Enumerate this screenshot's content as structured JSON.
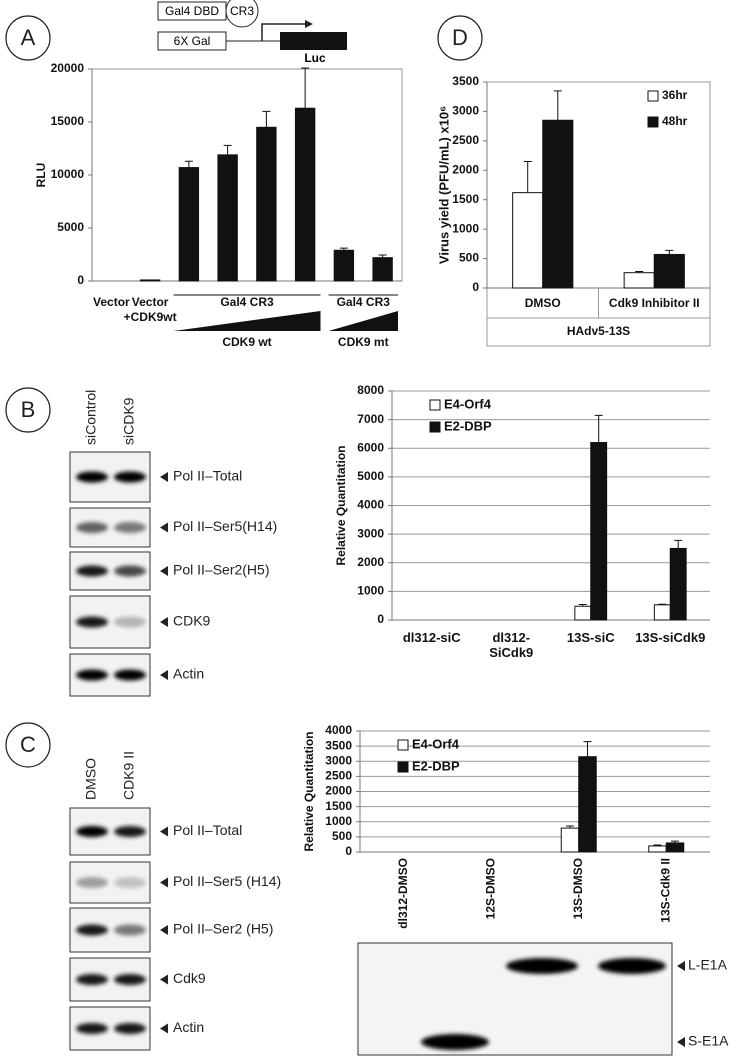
{
  "panel_labels": [
    "A",
    "D",
    "B",
    "C"
  ],
  "schematic": {
    "dbd": "Gal4 DBD",
    "cr3": "CR3",
    "promoter": "6X Gal",
    "reporter": "Luc"
  },
  "chart_data": [
    {
      "type": "bar",
      "ylabel": "RLU",
      "categories": [
        "Vector",
        "Vector +CDK9wt",
        null,
        null,
        null,
        null,
        null,
        null
      ],
      "values": [
        0,
        100,
        10700,
        11900,
        14500,
        16300,
        2900,
        2200
      ],
      "errors": [
        null,
        null,
        600,
        900,
        1500,
        3800,
        200,
        250
      ],
      "color": "#111111",
      "ylim": [
        0,
        20000
      ],
      "yticks": [
        0,
        5000,
        10000,
        15000,
        20000
      ],
      "grid": false,
      "group_labels": [
        "Gal4 CR3",
        "Gal4 CR3"
      ],
      "group_sublabels": [
        "CDK9 wt",
        "CDK9 mt"
      ]
    },
    {
      "type": "bar",
      "ylabel": "Virus yield (PFU/mL) x10⁶",
      "categories": [
        "DMSO",
        "Cdk9 Inhibitor II"
      ],
      "series": [
        {
          "name": "36hr",
          "color": "#ffffff",
          "values": [
            1620,
            260
          ],
          "errors": [
            530,
            20
          ]
        },
        {
          "name": "48hr",
          "color": "#111111",
          "values": [
            2850,
            570
          ],
          "errors": [
            500,
            70
          ]
        }
      ],
      "ylim": [
        0,
        3500
      ],
      "yticks": [
        0,
        500,
        1000,
        1500,
        2000,
        2500,
        3000,
        3500
      ],
      "grid": false,
      "xgroup_label": "HAdv5-13S",
      "legend": "top-right"
    },
    {
      "type": "bar",
      "ylabel": "Relative Quantitation",
      "categories": [
        "dl312-siC",
        "dl312-SiCdk9",
        "13S-siC",
        "13S-siCdk9"
      ],
      "series": [
        {
          "name": "E4-Orf4",
          "color": "#ffffff",
          "values": [
            0,
            0,
            480,
            530
          ],
          "errors": [
            null,
            null,
            60,
            20
          ]
        },
        {
          "name": "E2-DBP",
          "color": "#111111",
          "values": [
            0,
            0,
            6200,
            2500
          ],
          "errors": [
            null,
            null,
            950,
            280
          ]
        }
      ],
      "ylim": [
        0,
        8000
      ],
      "yticks": [
        0,
        1000,
        2000,
        3000,
        4000,
        5000,
        6000,
        7000,
        8000
      ],
      "grid": true,
      "legend": "top-left"
    },
    {
      "type": "bar",
      "ylabel": "Relative Quantitation",
      "categories": [
        "dl312-DMSO",
        "12S-DMSO",
        "13S-DMSO",
        "13S-Cdk9 II"
      ],
      "series": [
        {
          "name": "E4-Orf4",
          "color": "#ffffff",
          "values": [
            0,
            0,
            790,
            200
          ],
          "errors": [
            null,
            null,
            70,
            30
          ]
        },
        {
          "name": "E2-DBP",
          "color": "#111111",
          "values": [
            0,
            0,
            3150,
            300
          ],
          "errors": [
            null,
            null,
            500,
            60
          ]
        }
      ],
      "ylim": [
        0,
        4000
      ],
      "yticks": [
        0,
        500,
        1000,
        1500,
        2000,
        2500,
        3000,
        3500,
        4000
      ],
      "grid": true,
      "legend": "top-left"
    }
  ],
  "blots": {
    "B": {
      "columns": [
        "siControl",
        "siCDK9"
      ],
      "rows": [
        "Pol II–Total",
        "Pol II–Ser5(H14)",
        "Pol II–Ser2(H5)",
        "CDK9",
        "Actin"
      ]
    },
    "C": {
      "columns": [
        "DMSO",
        "CDK9 II"
      ],
      "rows": [
        "Pol II–Total",
        "Pol II–Ser5 (H14)",
        "Pol II–Ser2 (H5)",
        "Cdk9",
        "Actin"
      ]
    },
    "E1A": {
      "rows": [
        "L-E1A",
        "S-E1A"
      ]
    }
  }
}
